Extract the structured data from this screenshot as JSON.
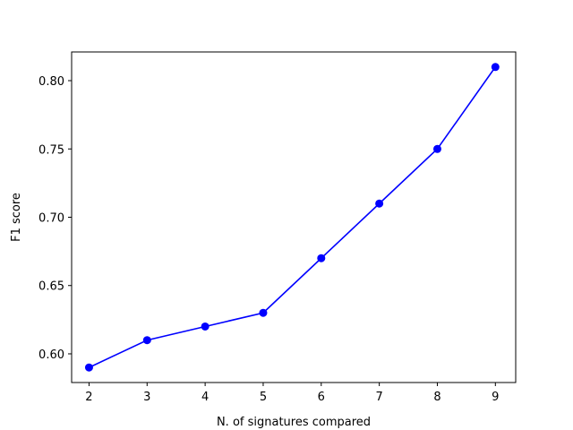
{
  "chart_data": {
    "type": "line",
    "title": "",
    "xlabel": "N. of signatures compared",
    "ylabel": "F1 score",
    "x": [
      2,
      3,
      4,
      5,
      6,
      7,
      8,
      9
    ],
    "series": [
      {
        "values": [
          0.59,
          0.61,
          0.62,
          0.63,
          0.67,
          0.71,
          0.75,
          0.81
        ],
        "color": "#0000ff",
        "marker": "circle"
      }
    ],
    "xlim": [
      1.7,
      9.35
    ],
    "ylim": [
      0.579,
      0.821
    ],
    "x_ticks": [
      2,
      3,
      4,
      5,
      6,
      7,
      8,
      9
    ],
    "x_tick_labels": [
      "2",
      "3",
      "4",
      "5",
      "6",
      "7",
      "8",
      "9"
    ],
    "y_ticks": [
      0.6,
      0.65,
      0.7,
      0.75,
      0.8
    ],
    "y_tick_labels": [
      "0.60",
      "0.65",
      "0.70",
      "0.75",
      "0.80"
    ],
    "grid": false,
    "legend": "none"
  }
}
